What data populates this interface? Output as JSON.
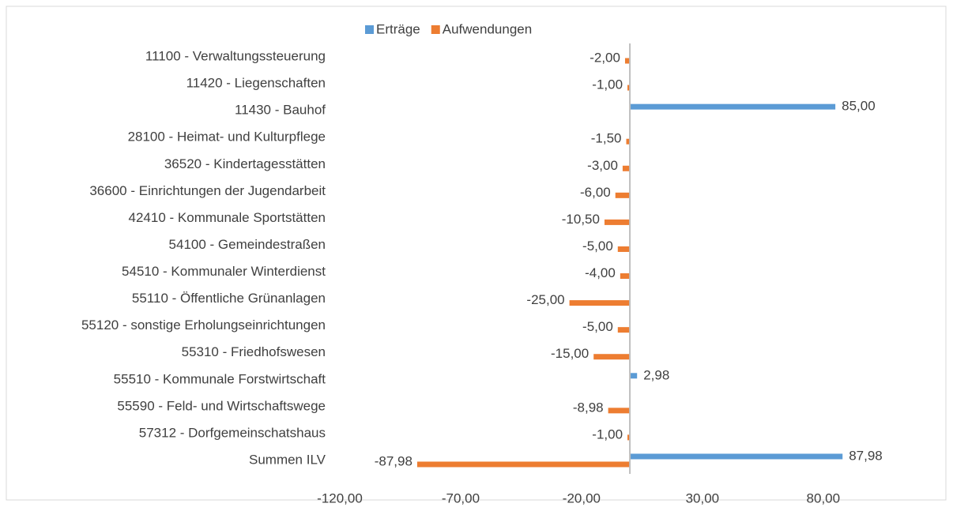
{
  "chart_data": {
    "type": "bar",
    "orientation": "horizontal",
    "categories": [
      "11100 - Verwaltungssteuerung",
      "11420 - Liegenschaften",
      "11430 - Bauhof",
      "28100 - Heimat- und Kulturpflege",
      "36520 - Kindertagesstätten",
      "36600 - Einrichtungen der Jugendarbeit",
      "42410 - Kommunale Sportstätten",
      "54100 - Gemeindestraßen",
      "54510 - Kommunaler Winterdienst",
      "55110 - Öffentliche Grünanlagen",
      "55120 - sonstige Erholungseinrichtungen",
      "55310 - Friedhofswesen",
      "55510 - Kommunale Forstwirtschaft",
      "55590 - Feld- und Wirtschaftswege",
      "57312 - Dorfgemeinschatshaus",
      "Summen ILV"
    ],
    "series": [
      {
        "name": "Erträge",
        "color": "#5b9bd5",
        "values": [
          null,
          null,
          85,
          null,
          null,
          null,
          null,
          null,
          null,
          null,
          null,
          null,
          2.98,
          null,
          null,
          87.98
        ],
        "value_labels": [
          null,
          null,
          "85,00",
          null,
          null,
          null,
          null,
          null,
          null,
          null,
          null,
          null,
          "2,98",
          null,
          null,
          "87,98"
        ]
      },
      {
        "name": "Aufwendungen",
        "color": "#ed7d31",
        "values": [
          -2,
          -1,
          null,
          -1.5,
          -3,
          -6,
          -10.5,
          -5,
          -4,
          -25,
          -5,
          -15,
          null,
          -8.98,
          -1,
          -87.98
        ],
        "value_labels": [
          "-2,00",
          "-1,00",
          null,
          "-1,50",
          "-3,00",
          "-6,00",
          "-10,50",
          "-5,00",
          "-4,00",
          "-25,00",
          "-5,00",
          "-15,00",
          null,
          "-8,98",
          "-1,00",
          "-87,98"
        ]
      }
    ],
    "xlim": [
      -120,
      100
    ],
    "xticks": [
      {
        "value": -120,
        "label": "-120,00"
      },
      {
        "value": -70,
        "label": "-70,00"
      },
      {
        "value": -20,
        "label": "-20,00"
      },
      {
        "value": 30,
        "label": "30,00"
      },
      {
        "value": 80,
        "label": "80,00"
      }
    ],
    "legend": "top"
  }
}
